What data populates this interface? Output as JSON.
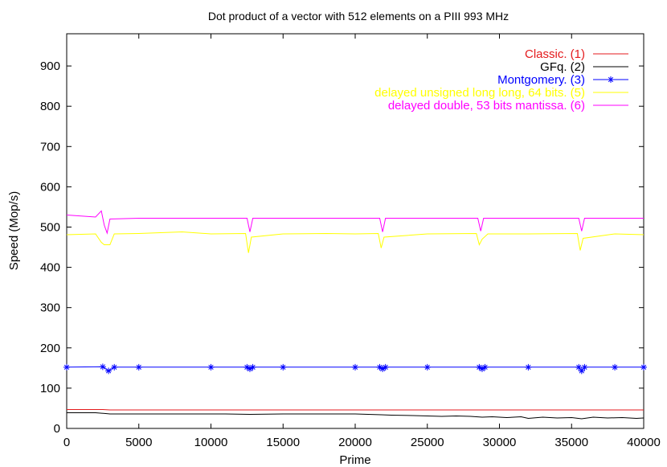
{
  "chart_data": {
    "type": "line",
    "title": "Dot product of a vector with 512 elements on a PIII 993 MHz",
    "xlabel": "Prime",
    "ylabel": "Speed (Mop/s)",
    "xlim": [
      0,
      40000
    ],
    "ylim": [
      0,
      980
    ],
    "x_ticks": [
      0,
      5000,
      10000,
      15000,
      20000,
      25000,
      30000,
      35000,
      40000
    ],
    "y_ticks": [
      0,
      100,
      200,
      300,
      400,
      500,
      600,
      700,
      800,
      900
    ],
    "grid": false,
    "legend_position": "top-right",
    "series": [
      {
        "name": "Classic. (1)",
        "color": "#e41a1c",
        "marker": "none",
        "x": [
          0,
          2500,
          3000,
          12500,
          13000,
          21500,
          22000,
          28500,
          29000,
          35500,
          36000,
          40000
        ],
        "values": [
          47,
          47,
          46,
          46,
          46,
          46,
          46,
          46,
          46,
          46,
          46,
          46
        ]
      },
      {
        "name": "GFq. (2)",
        "color": "#000000",
        "marker": "none",
        "x": [
          0,
          2000,
          2700,
          3000,
          5000,
          8000,
          11000,
          12700,
          15000,
          18000,
          20000,
          21800,
          22500,
          24000,
          25000,
          26000,
          27000,
          28000,
          28800,
          29500,
          30500,
          31500,
          32000,
          33000,
          34000,
          35000,
          35700,
          36500,
          37500,
          38500,
          39500,
          40000
        ],
        "values": [
          39,
          39,
          37,
          36,
          36,
          36,
          36,
          35,
          36,
          36,
          36,
          34,
          33,
          32,
          31,
          30,
          31,
          30,
          28,
          29,
          27,
          29,
          25,
          28,
          26,
          27,
          24,
          28,
          26,
          27,
          25,
          26
        ]
      },
      {
        "name": "Montgomery. (3)",
        "color": "#0000ff",
        "marker": "star",
        "x": [
          0,
          2500,
          2900,
          3300,
          5000,
          10000,
          12500,
          12700,
          12900,
          15000,
          20000,
          21700,
          21900,
          22100,
          25000,
          28600,
          28800,
          29000,
          32000,
          35500,
          35700,
          35900,
          38000,
          40000
        ],
        "values": [
          152,
          153,
          143,
          152,
          152,
          152,
          152,
          148,
          152,
          152,
          152,
          152,
          148,
          152,
          152,
          152,
          148,
          152,
          152,
          152,
          143,
          152,
          152,
          152
        ]
      },
      {
        "name": "delayed unsigned long long, 64 bits. (5)",
        "color": "#ffff00",
        "marker": "none",
        "x": [
          0,
          2000,
          2400,
          2600,
          3000,
          3300,
          5000,
          8000,
          10000,
          12400,
          12600,
          12800,
          15000,
          18000,
          20000,
          21600,
          21800,
          22000,
          25000,
          28400,
          28600,
          28800,
          29200,
          32000,
          35400,
          35600,
          35800,
          38000,
          40000
        ],
        "values": [
          481,
          483,
          462,
          456,
          456,
          483,
          484,
          488,
          483,
          484,
          436,
          475,
          483,
          484,
          483,
          484,
          448,
          475,
          483,
          484,
          456,
          470,
          483,
          483,
          484,
          442,
          472,
          483,
          481
        ]
      },
      {
        "name": "delayed double, 53 bits mantissa. (6)",
        "color": "#ff00ff",
        "marker": "none",
        "x": [
          0,
          2000,
          2400,
          2600,
          2800,
          3000,
          5000,
          8000,
          10000,
          12500,
          12700,
          12900,
          15000,
          18000,
          20000,
          21700,
          21900,
          22100,
          25000,
          28500,
          28700,
          28900,
          32000,
          35500,
          35700,
          35900,
          38000,
          40000
        ],
        "values": [
          530,
          525,
          540,
          505,
          485,
          520,
          522,
          522,
          522,
          522,
          488,
          522,
          522,
          522,
          522,
          522,
          488,
          522,
          522,
          522,
          490,
          522,
          522,
          522,
          490,
          522,
          522,
          522
        ]
      }
    ]
  }
}
